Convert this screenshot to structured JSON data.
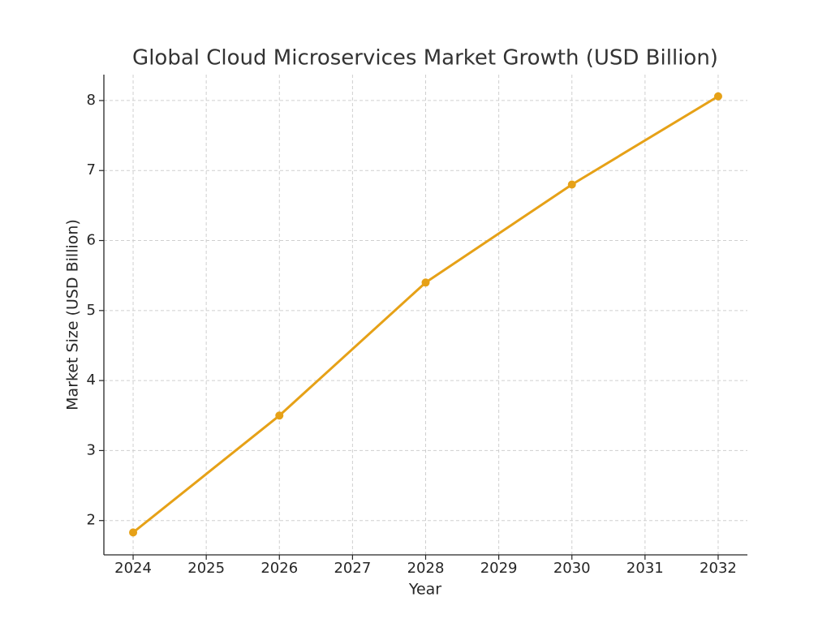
{
  "chart_data": {
    "type": "line",
    "title": "Global Cloud Microservices Market Growth (USD Billion)",
    "x_label": "Year",
    "y_label": "Market Size (USD Billion)",
    "x": [
      2024,
      2026,
      2028,
      2030,
      2032
    ],
    "series": [
      {
        "color": "#e6a117",
        "values": [
          1.83,
          3.5,
          5.4,
          6.8,
          8.06
        ]
      }
    ],
    "xlim": [
      2023.6,
      2032.4
    ],
    "xticks": [
      2024,
      2025,
      2026,
      2027,
      2028,
      2029,
      2030,
      2031,
      2032
    ],
    "ylim": [
      1.51,
      8.37
    ],
    "yticks": [
      2,
      3,
      4,
      5,
      6,
      7,
      8
    ],
    "grid": true,
    "markers": true
  }
}
